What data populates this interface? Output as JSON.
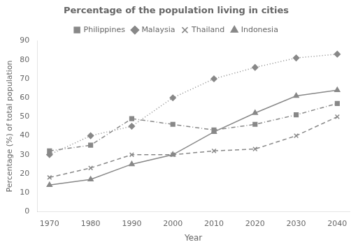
{
  "chart_data": {
    "type": "line",
    "title": "Percentage of the population living in cities",
    "xlabel": "Year",
    "ylabel": "Percentage (%) of total population",
    "x": [
      1970,
      1980,
      1990,
      2000,
      2010,
      2020,
      2030,
      2040
    ],
    "series": [
      {
        "name": "Philippines",
        "color": "#888888",
        "marker": "square",
        "line_style": "dashdot",
        "values": [
          32,
          35,
          49,
          46,
          43,
          46,
          51,
          57
        ]
      },
      {
        "name": "Malaysia",
        "color": "#888888",
        "marker": "diamond",
        "line_style": "dotted",
        "values": [
          30,
          40,
          45,
          60,
          70,
          76,
          81,
          83
        ]
      },
      {
        "name": "Thailand",
        "color": "#888888",
        "marker": "x",
        "line_style": "dashed",
        "values": [
          18,
          23,
          30,
          30,
          32,
          33,
          40,
          50
        ]
      },
      {
        "name": "Indonesia",
        "color": "#888888",
        "marker": "triangle",
        "line_style": "solid",
        "values": [
          14,
          17,
          25,
          30,
          42,
          52,
          61,
          64
        ]
      }
    ],
    "xlim": [
      1967,
      2043
    ],
    "xticks": [
      1970,
      1980,
      1990,
      2000,
      2010,
      2020,
      2030,
      2040
    ],
    "ylim": [
      0,
      90
    ],
    "yticks": [
      0,
      10,
      20,
      30,
      40,
      50,
      60,
      70,
      80,
      90
    ],
    "grid": false,
    "legend": "top"
  }
}
